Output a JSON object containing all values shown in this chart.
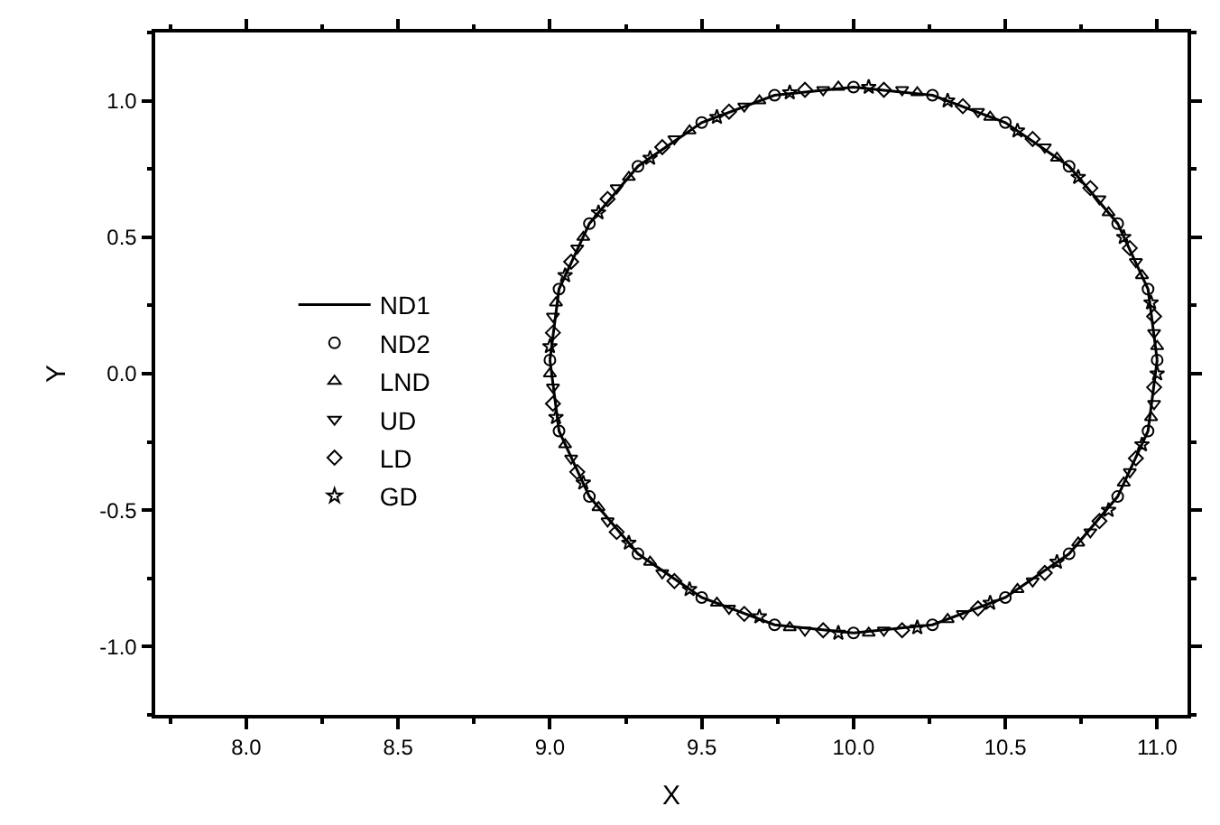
{
  "chart_data": {
    "type": "line",
    "xlabel": "X",
    "ylabel": "Y",
    "xlim": [
      7.7,
      11.1
    ],
    "ylim": [
      -1.25,
      1.25
    ],
    "xticks": [
      {
        "value": 7.75,
        "label": null
      },
      {
        "value": 8.0,
        "label": "8.0"
      },
      {
        "value": 8.25,
        "label": null
      },
      {
        "value": 8.5,
        "label": "8.5"
      },
      {
        "value": 8.75,
        "label": null
      },
      {
        "value": 9.0,
        "label": "9.0"
      },
      {
        "value": 9.25,
        "label": null
      },
      {
        "value": 9.5,
        "label": "9.5"
      },
      {
        "value": 9.75,
        "label": null
      },
      {
        "value": 10.0,
        "label": "10.0"
      },
      {
        "value": 10.25,
        "label": null
      },
      {
        "value": 10.5,
        "label": "10.5"
      },
      {
        "value": 10.75,
        "label": null
      },
      {
        "value": 11.0,
        "label": "11.0"
      }
    ],
    "yticks": [
      {
        "value": -1.25,
        "label": null
      },
      {
        "value": -1.0,
        "label": "-1.0"
      },
      {
        "value": -0.75,
        "label": null
      },
      {
        "value": -0.5,
        "label": "-0.5"
      },
      {
        "value": -0.25,
        "label": null
      },
      {
        "value": 0.0,
        "label": "0.0"
      },
      {
        "value": 0.25,
        "label": null
      },
      {
        "value": 0.5,
        "label": "0.5"
      },
      {
        "value": 0.75,
        "label": null
      },
      {
        "value": 1.0,
        "label": "1.0"
      },
      {
        "value": 1.25,
        "label": null
      }
    ],
    "legend": "left",
    "series": [
      {
        "name": "ND1",
        "color": "#000000",
        "marker": "none",
        "line_style": "solid",
        "x": [
          11.0,
          10.97,
          10.87,
          10.71,
          10.5,
          10.26,
          10.0,
          9.74,
          9.5,
          9.29,
          9.13,
          9.03,
          9.0,
          null,
          9.0,
          9.03,
          9.13,
          9.29,
          9.5,
          9.74,
          10.0,
          10.26,
          10.5,
          10.71,
          10.87,
          10.97,
          11.0
        ],
        "values": [
          0.05,
          0.31,
          0.55,
          0.76,
          0.92,
          1.02,
          1.05,
          1.02,
          0.92,
          0.76,
          0.55,
          0.31,
          0.05,
          null,
          0.05,
          -0.21,
          -0.45,
          -0.66,
          -0.82,
          -0.92,
          -0.95,
          -0.92,
          -0.82,
          -0.66,
          -0.45,
          -0.21,
          0.05
        ]
      },
      {
        "name": "ND2",
        "type": "scatter",
        "color": "#000000",
        "marker": "circle",
        "x": [
          11.0,
          10.97,
          10.87,
          10.71,
          10.5,
          10.26,
          10.0,
          9.74,
          9.5,
          9.29,
          9.13,
          9.03,
          9.0,
          9.03,
          9.13,
          9.29,
          9.5,
          9.74,
          10.0,
          10.26,
          10.5,
          10.71,
          10.87,
          10.97
        ],
        "values": [
          0.05,
          0.31,
          0.55,
          0.76,
          0.92,
          1.02,
          1.05,
          1.02,
          0.92,
          0.76,
          0.55,
          0.31,
          0.05,
          -0.21,
          -0.45,
          -0.66,
          -0.82,
          -0.92,
          -0.95,
          -0.92,
          -0.82,
          -0.66,
          -0.45,
          -0.21
        ]
      },
      {
        "name": "LND",
        "type": "scatter",
        "color": "#000000",
        "marker": "triangle",
        "x": [
          11.0,
          10.95,
          10.84,
          10.67,
          10.45,
          10.21,
          9.95,
          9.69,
          9.46,
          9.26,
          9.11,
          9.02,
          9.0,
          9.05,
          9.16,
          9.33,
          9.55,
          9.79,
          10.05,
          10.31,
          10.54,
          10.74,
          10.89,
          10.98
        ],
        "values": [
          0.1,
          0.36,
          0.59,
          0.79,
          0.94,
          1.03,
          1.05,
          1.0,
          0.89,
          0.72,
          0.5,
          0.26,
          0.0,
          -0.26,
          -0.49,
          -0.69,
          -0.84,
          -0.93,
          -0.95,
          -0.9,
          -0.79,
          -0.62,
          -0.4,
          -0.16
        ]
      },
      {
        "name": "UD",
        "type": "scatter",
        "color": "#000000",
        "marker": "triangle-down",
        "x": [
          10.99,
          10.93,
          10.81,
          10.63,
          10.41,
          10.16,
          9.9,
          9.64,
          9.41,
          9.22,
          9.09,
          9.01,
          9.01,
          9.07,
          9.19,
          9.37,
          9.59,
          9.84,
          10.1,
          10.36,
          10.59,
          10.78,
          10.91,
          10.99
        ],
        "values": [
          0.15,
          0.41,
          0.64,
          0.83,
          0.96,
          1.04,
          1.04,
          0.98,
          0.86,
          0.68,
          0.46,
          0.21,
          -0.05,
          -0.31,
          -0.54,
          -0.73,
          -0.86,
          -0.94,
          -0.94,
          -0.88,
          -0.76,
          -0.58,
          -0.36,
          -0.11
        ]
      },
      {
        "name": "LD",
        "type": "scatter",
        "color": "#000000",
        "marker": "diamond",
        "x": [
          10.99,
          10.91,
          10.78,
          10.59,
          10.36,
          10.1,
          9.84,
          9.59,
          9.37,
          9.19,
          9.07,
          9.01,
          9.01,
          9.09,
          9.22,
          9.41,
          9.64,
          9.9,
          10.16,
          10.41,
          10.63,
          10.81,
          10.93,
          10.99
        ],
        "values": [
          0.21,
          0.46,
          0.68,
          0.86,
          0.98,
          1.04,
          1.04,
          0.96,
          0.83,
          0.64,
          0.41,
          0.15,
          -0.11,
          -0.36,
          -0.58,
          -0.76,
          -0.88,
          -0.94,
          -0.94,
          -0.86,
          -0.73,
          -0.54,
          -0.31,
          -0.05
        ]
      },
      {
        "name": "GD",
        "type": "scatter",
        "color": "#000000",
        "marker": "star",
        "x": [
          10.98,
          10.89,
          10.74,
          10.54,
          10.31,
          10.05,
          9.79,
          9.55,
          9.33,
          9.16,
          9.05,
          9.0,
          9.02,
          9.11,
          9.26,
          9.46,
          9.69,
          9.95,
          10.21,
          10.45,
          10.67,
          10.84,
          10.95,
          11.0
        ],
        "values": [
          0.26,
          0.5,
          0.72,
          0.89,
          1.0,
          1.05,
          1.03,
          0.94,
          0.79,
          0.59,
          0.36,
          0.1,
          -0.16,
          -0.4,
          -0.62,
          -0.79,
          -0.89,
          -0.95,
          -0.93,
          -0.84,
          -0.69,
          -0.5,
          -0.26,
          0.0
        ]
      }
    ]
  }
}
